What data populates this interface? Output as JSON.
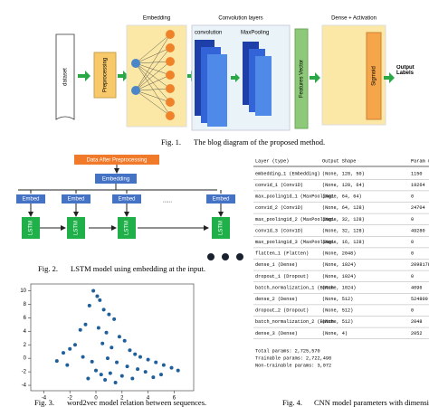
{
  "fig1": {
    "dataset": "dataset",
    "preprocessing": "Preprocessing",
    "embedding": "Embedding",
    "conv_layers": "Convolution layers",
    "convolution": "convolution",
    "maxpooling": "MaxPooling",
    "features": "Features Vector",
    "dense": "Dense + Activation",
    "sigmoid": "Sigmoid",
    "output": "Output Labels",
    "caption_num": "Fig. 1.",
    "caption": "The blog diagram of the proposed method."
  },
  "fig2": {
    "input": "Data After Preprocessing",
    "embedding": "Embedding",
    "embed": "Embed",
    "lstm": "LSTM",
    "dots": "......",
    "caption_num": "Fig. 2.",
    "caption": "LSTM model using embedding at the input."
  },
  "fig3": {
    "caption_num": "Fig. 3.",
    "caption": "word2vec model relation between sequences.",
    "chart_data": {
      "type": "scatter",
      "color": "#1f5f9a",
      "xlim": [
        -5,
        7.5
      ],
      "ylim": [
        -4.8,
        11
      ],
      "xticks": [
        -4,
        -2,
        0,
        2,
        4,
        6
      ],
      "yticks": [
        10,
        8,
        6,
        4,
        2,
        0,
        -2,
        -4
      ],
      "x": [
        -0.2,
        0.1,
        0.3,
        -0.5,
        0.6,
        1.0,
        1.4,
        -0.8,
        -1.2,
        0.2,
        0.8,
        1.8,
        2.2,
        -1.6,
        -2.0,
        -2.5,
        0.5,
        1.2,
        2.6,
        3.0,
        3.4,
        4.0,
        4.6,
        5.2,
        5.8,
        6.3,
        -1.0,
        -0.3,
        0.9,
        1.6,
        2.4,
        3.2,
        -3.0,
        -2.2,
        0.0,
        0.4,
        1.1,
        2.0,
        3.8,
        5.0,
        -0.6,
        0.7,
        1.5,
        2.8,
        4.4
      ],
      "y": [
        10.0,
        9.2,
        8.6,
        7.8,
        7.2,
        6.5,
        5.8,
        5.0,
        4.2,
        4.5,
        3.8,
        3.2,
        2.6,
        2.0,
        1.4,
        0.8,
        2.2,
        1.6,
        1.2,
        0.6,
        0.2,
        -0.2,
        -0.6,
        -1.0,
        -1.4,
        -1.8,
        0.2,
        -0.5,
        0.0,
        -0.6,
        -1.2,
        -1.6,
        -0.4,
        -1.0,
        -1.8,
        -2.4,
        -2.2,
        -2.6,
        -2.0,
        -2.4,
        -3.0,
        -3.2,
        -3.6,
        -3.0,
        -2.8
      ]
    }
  },
  "fig4": {
    "caption_num": "Fig. 4.",
    "caption": "CNN model parameters with dimension",
    "header": [
      "Layer (type)",
      "Output Shape",
      "Param #"
    ],
    "rows": [
      [
        "embedding_1 (Embedding)",
        "(None, 128, 50)",
        "1150"
      ],
      [
        "conv1d_1 (Conv1D)",
        "(None, 128, 64)",
        "19264"
      ],
      [
        "max_pooling1d_1 (MaxPooling1",
        "(None, 64, 64)",
        "0"
      ],
      [
        "conv1d_2 (Conv1D)",
        "(None, 64, 128)",
        "24704"
      ],
      [
        "max_pooling1d_2 (MaxPooling1",
        "(None, 32, 128)",
        "0"
      ],
      [
        "conv1d_3 (Conv1D)",
        "(None, 32, 128)",
        "49280"
      ],
      [
        "max_pooling1d_3 (MaxPooling1",
        "(None, 16, 128)",
        "0"
      ],
      [
        "flatten_1 (Flatten)",
        "(None, 2048)",
        "0"
      ],
      [
        "dense_1 (Dense)",
        "(None, 1024)",
        "2098176"
      ],
      [
        "dropout_1 (Dropout)",
        "(None, 1024)",
        "0"
      ],
      [
        "batch_normalization_1 (Batch",
        "(None, 1024)",
        "4096"
      ],
      [
        "dense_2 (Dense)",
        "(None, 512)",
        "524800"
      ],
      [
        "dropout_2 (Dropout)",
        "(None, 512)",
        "0"
      ],
      [
        "batch_normalization_2 (Batch",
        "(None, 512)",
        "2048"
      ],
      [
        "dense_3 (Dense)",
        "(None, 4)",
        "2052"
      ]
    ],
    "totals": [
      "Total params: 2,725,570",
      "Trainable params: 2,722,498",
      "Non-trainable params: 3,072"
    ]
  }
}
